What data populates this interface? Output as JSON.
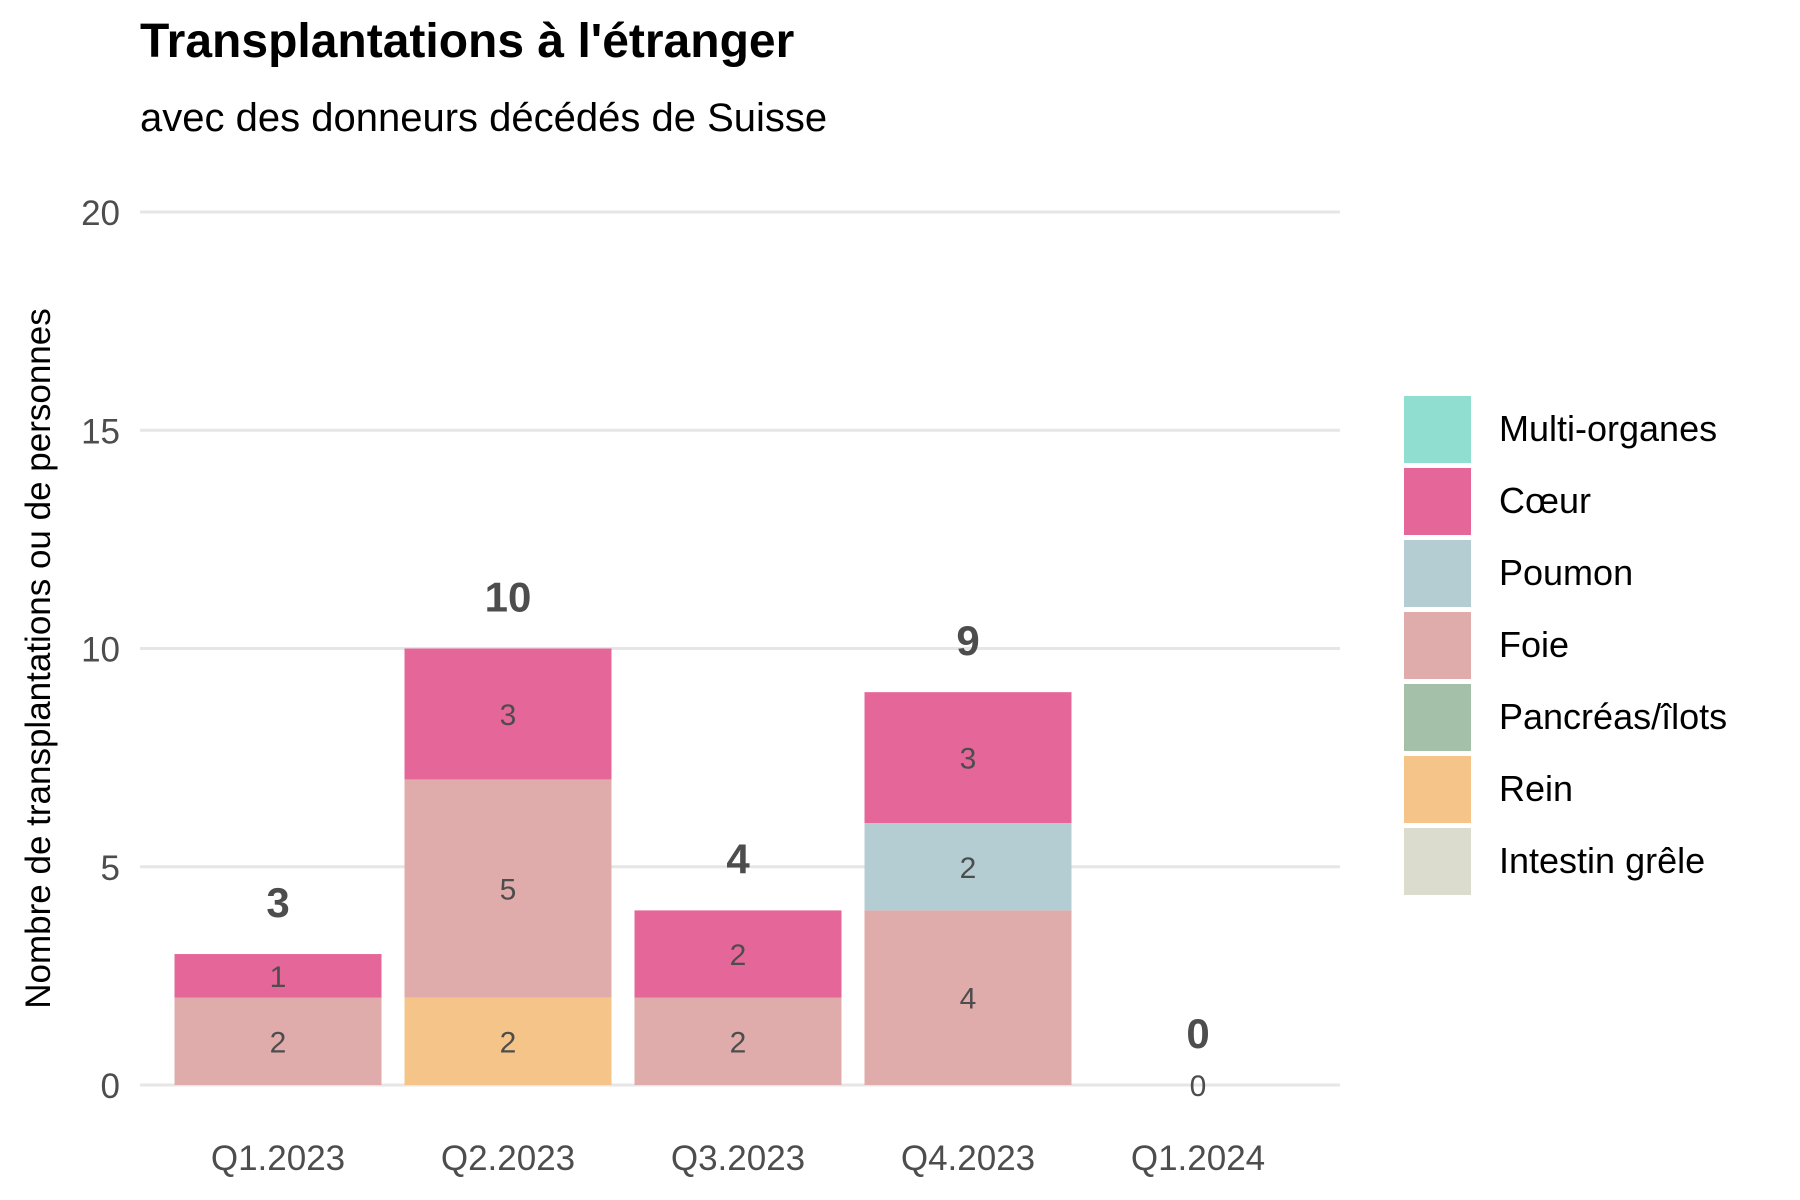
{
  "chart_data": {
    "type": "bar",
    "stacked": true,
    "title": "Transplantations à l'étranger",
    "subtitle": "avec des donneurs décédés de Suisse",
    "xlabel": "",
    "ylabel": "Nombre de transplantations ou de personnes",
    "ylim": [
      0,
      20
    ],
    "yticks": [
      0,
      5,
      10,
      15,
      20
    ],
    "grid": true,
    "legend_position": "right",
    "categories": [
      "Q1.2023",
      "Q2.2023",
      "Q3.2023",
      "Q4.2023",
      "Q1.2024"
    ],
    "series": [
      {
        "name": "Multi-organes",
        "color": "#8FDECF",
        "values": [
          0,
          0,
          0,
          0,
          0
        ]
      },
      {
        "name": "Cœur",
        "color": "#E5679A",
        "values": [
          1,
          3,
          2,
          3,
          0
        ]
      },
      {
        "name": "Poumon",
        "color": "#B4CDD3",
        "values": [
          0,
          0,
          0,
          2,
          0
        ]
      },
      {
        "name": "Foie",
        "color": "#E0ABAB",
        "values": [
          2,
          5,
          2,
          4,
          0
        ]
      },
      {
        "name": "Pancréas/îlots",
        "color": "#A5C0A9",
        "values": [
          0,
          0,
          0,
          0,
          0
        ]
      },
      {
        "name": "Rein",
        "color": "#F5C489",
        "values": [
          0,
          2,
          0,
          0,
          0
        ]
      },
      {
        "name": "Intestin grêle",
        "color": "#DBDBCE",
        "values": [
          0,
          0,
          0,
          0,
          0
        ]
      }
    ],
    "totals": [
      3,
      10,
      4,
      9,
      0
    ]
  }
}
